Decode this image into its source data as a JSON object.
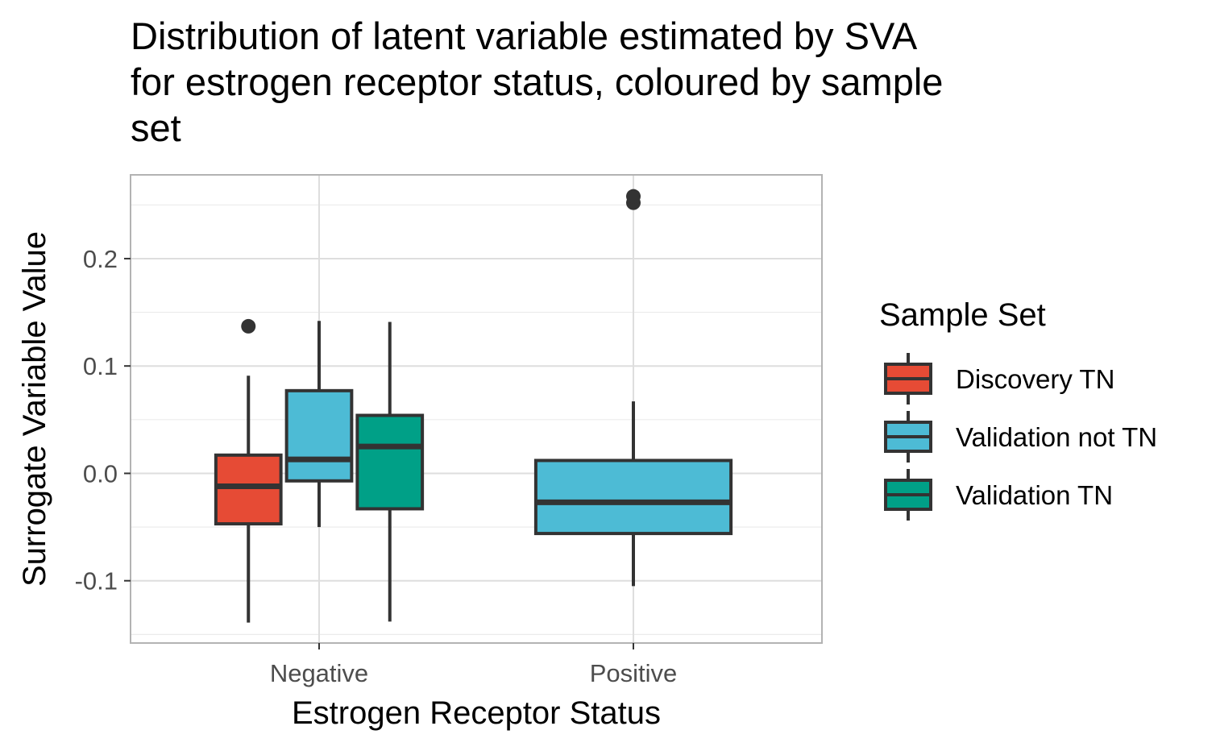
{
  "title_lines": [
    "Distribution of latent variable estimated by SVA",
    "for estrogen receptor status, coloured by sample",
    "set"
  ],
  "chart_data": {
    "type": "boxplot",
    "title": "Distribution of latent variable estimated by SVA for estrogen receptor status, coloured by sample set",
    "xlabel": "Estrogen Receptor Status",
    "ylabel": "Surrogate Variable Value",
    "categories": [
      "Negative",
      "Positive"
    ],
    "yticks": [
      -0.1,
      0.0,
      0.1,
      0.2
    ],
    "ytick_labels": [
      "-0.1",
      "0.0",
      "0.1",
      "0.2"
    ],
    "ylim": [
      -0.158,
      0.278
    ],
    "grid": true,
    "legend": {
      "title": "Sample Set",
      "position": "right"
    },
    "series": [
      {
        "name": "Discovery TN",
        "color": "#E64B35",
        "boxes": [
          {
            "category": "Negative",
            "slot": 0,
            "nslots": 3,
            "min": -0.139,
            "q1": -0.047,
            "median": -0.012,
            "q3": 0.017,
            "max": 0.091,
            "outliers": [
              0.137
            ]
          }
        ]
      },
      {
        "name": "Validation not TN",
        "color": "#4DBBD5",
        "boxes": [
          {
            "category": "Negative",
            "slot": 1,
            "nslots": 3,
            "min": -0.05,
            "q1": -0.007,
            "median": 0.013,
            "q3": 0.077,
            "max": 0.142,
            "outliers": []
          },
          {
            "category": "Positive",
            "slot": 0,
            "nslots": 1,
            "min": -0.105,
            "q1": -0.056,
            "median": -0.027,
            "q3": 0.012,
            "max": 0.067,
            "outliers": [
              0.252,
              0.258
            ]
          }
        ]
      },
      {
        "name": "Validation TN",
        "color": "#00A087",
        "boxes": [
          {
            "category": "Negative",
            "slot": 2,
            "nslots": 3,
            "min": -0.138,
            "q1": -0.033,
            "median": 0.025,
            "q3": 0.054,
            "max": 0.141,
            "outliers": []
          }
        ]
      }
    ]
  }
}
